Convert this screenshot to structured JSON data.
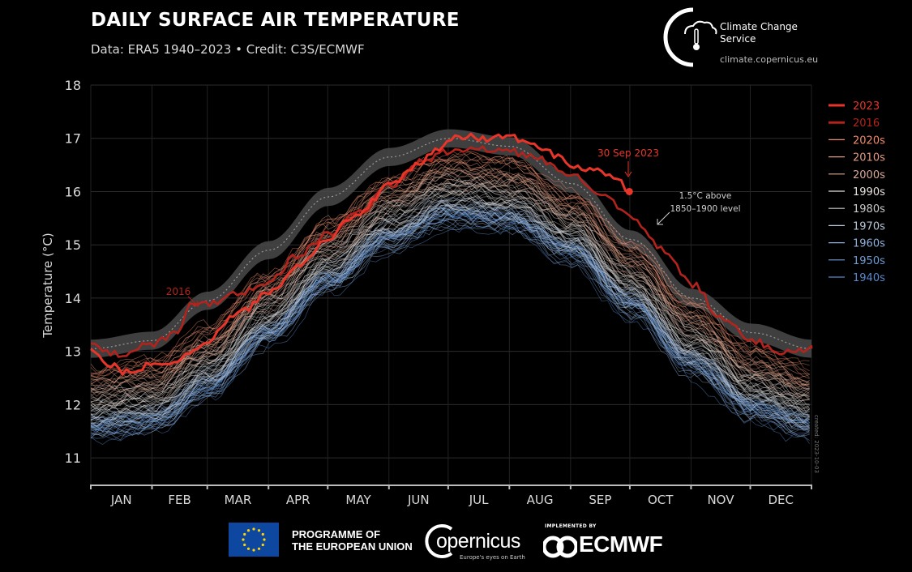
{
  "header": {
    "title": "DAILY SURFACE AIR TEMPERATURE",
    "subtitle": "Data: ERA5 1940–2023 • Credit: C3S/ECMWF",
    "service_name": "Climate Change Service",
    "service_url": "climate.copernicus.eu"
  },
  "footer": {
    "eu_line1": "PROGRAMME OF",
    "eu_line2": "THE EUROPEAN UNION",
    "copernicus": "opernicus",
    "copernicus_tagline": "Europe's eyes on Earth",
    "implemented_by": "IMPLEMENTED BY",
    "ecmwf": "ECMWF"
  },
  "colors": {
    "y2023": "#e8352a",
    "y2016": "#b3231d",
    "band": "#4a4a4a",
    "decades": {
      "2020s": "#f08a6c",
      "2010s": "#e49a80",
      "2000s": "#d9ab98",
      "1990s": "#e8e0dc",
      "1980s": "#c9c9c9",
      "1970s": "#b8c6d8",
      "1960s": "#8fb0dc",
      "1950s": "#6f9cd4",
      "1940s": "#5788cc"
    }
  },
  "chart_data": {
    "type": "line",
    "ylabel": "Temperature (°C)",
    "ylim": [
      10.5,
      18
    ],
    "yticks": [
      11,
      12,
      13,
      14,
      15,
      16,
      17,
      18
    ],
    "months": [
      "JAN",
      "FEB",
      "MAR",
      "APR",
      "MAY",
      "JUN",
      "JUL",
      "AUG",
      "SEP",
      "OCT",
      "NOV",
      "DEC"
    ],
    "grid": true,
    "legend_position": "right",
    "legend": [
      "2023",
      "2016",
      "2020s",
      "2010s",
      "2000s",
      "1990s",
      "1980s",
      "1970s",
      "1960s",
      "1950s",
      "1940s"
    ],
    "annotations": {
      "last_point": "30 Sep 2023",
      "year_2016": "2016",
      "threshold_line1": "1.5°C above",
      "threshold_line2": "1850–1900 level",
      "watermark": "created: 2023-10-03"
    },
    "threshold_band": {
      "name": "1.5°C above 1850–1900 level",
      "day": [
        1,
        32,
        60,
        91,
        121,
        152,
        182,
        213,
        244,
        274,
        305,
        335,
        365
      ],
      "values": [
        13.05,
        13.2,
        13.95,
        14.9,
        15.9,
        16.65,
        17.0,
        16.85,
        16.15,
        15.1,
        14.0,
        13.35,
        13.05
      ]
    },
    "decade_climatology": {
      "description": "typical day-of-year mean per decade (°C)",
      "day": [
        1,
        32,
        60,
        91,
        121,
        152,
        182,
        213,
        244,
        274,
        305,
        335,
        365
      ],
      "1940s": [
        11.55,
        11.65,
        12.3,
        13.3,
        14.3,
        15.1,
        15.55,
        15.45,
        14.85,
        13.85,
        12.75,
        11.9,
        11.55
      ],
      "1950s": [
        11.6,
        11.7,
        12.35,
        13.35,
        14.35,
        15.15,
        15.6,
        15.5,
        14.9,
        13.9,
        12.8,
        11.95,
        11.6
      ],
      "1960s": [
        11.6,
        11.7,
        12.35,
        13.35,
        14.35,
        15.15,
        15.6,
        15.5,
        14.9,
        13.9,
        12.8,
        11.95,
        11.6
      ],
      "1970s": [
        11.7,
        11.8,
        12.45,
        13.45,
        14.45,
        15.25,
        15.7,
        15.6,
        15.0,
        14.0,
        12.9,
        12.05,
        11.7
      ],
      "1980s": [
        11.9,
        12.0,
        12.65,
        13.65,
        14.65,
        15.45,
        15.9,
        15.8,
        15.2,
        14.2,
        13.1,
        12.25,
        11.9
      ],
      "1990s": [
        12.1,
        12.2,
        12.85,
        13.85,
        14.85,
        15.65,
        16.1,
        16.0,
        15.4,
        14.4,
        13.3,
        12.45,
        12.1
      ],
      "2000s": [
        12.3,
        12.4,
        13.05,
        14.05,
        15.05,
        15.85,
        16.3,
        16.2,
        15.6,
        14.6,
        13.5,
        12.65,
        12.3
      ],
      "2010s": [
        12.5,
        12.6,
        13.25,
        14.25,
        15.25,
        16.05,
        16.5,
        16.4,
        15.8,
        14.8,
        13.7,
        12.85,
        12.5
      ],
      "2020s": [
        12.7,
        12.8,
        13.45,
        14.45,
        15.45,
        16.25,
        16.7,
        16.6,
        16.0,
        15.0,
        13.9,
        13.05,
        12.7
      ]
    },
    "series": [
      {
        "name": "2023",
        "day": [
          1,
          10,
          20,
          32,
          45,
          60,
          75,
          91,
          105,
          121,
          136,
          152,
          167,
          175,
          182,
          190,
          200,
          213,
          225,
          235,
          244,
          255,
          265,
          273
        ],
        "values": [
          13.0,
          12.75,
          12.6,
          12.75,
          12.85,
          13.2,
          13.7,
          14.1,
          14.6,
          15.15,
          15.6,
          16.1,
          16.5,
          16.75,
          16.98,
          17.05,
          16.97,
          17.05,
          16.85,
          16.7,
          16.5,
          16.4,
          16.3,
          16.0
        ]
      },
      {
        "name": "2016",
        "day": [
          1,
          15,
          32,
          45,
          52,
          60,
          75,
          91,
          105,
          121,
          136,
          152,
          167,
          182,
          197,
          213,
          228,
          244,
          259,
          274,
          290,
          305,
          320,
          335,
          350,
          365
        ],
        "values": [
          13.1,
          12.95,
          13.15,
          13.35,
          13.9,
          13.9,
          14.1,
          14.3,
          14.8,
          15.2,
          15.6,
          16.1,
          16.55,
          16.75,
          16.8,
          16.75,
          16.6,
          16.3,
          16.0,
          15.5,
          14.9,
          14.25,
          13.6,
          13.2,
          13.0,
          13.05
        ]
      }
    ]
  }
}
